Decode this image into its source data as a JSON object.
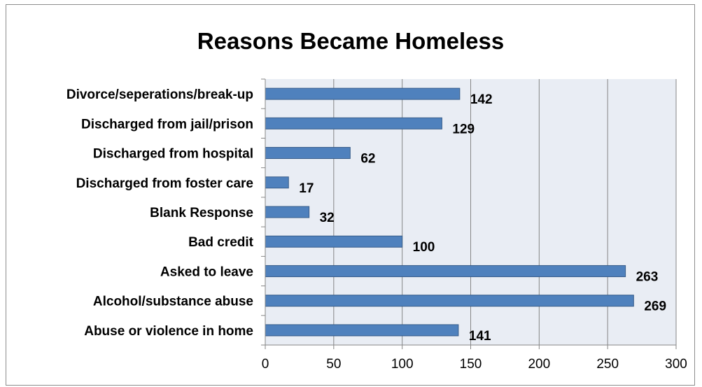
{
  "chart_data": {
    "type": "bar",
    "orientation": "horizontal",
    "title": "Reasons Became Homeless",
    "categories": [
      "Divorce/seperations/break-up",
      "Discharged from jail/prison",
      "Discharged from hospital",
      "Discharged from foster care",
      "Blank Response",
      "Bad credit",
      "Asked to leave",
      "Alcohol/substance abuse",
      "Abuse or violence in home"
    ],
    "values": [
      142,
      129,
      62,
      17,
      32,
      100,
      263,
      269,
      141
    ],
    "xlim": [
      0,
      300
    ],
    "xticks": [
      "0",
      "50",
      "100",
      "150",
      "200",
      "250",
      "300"
    ],
    "grid": "vertical",
    "legend": "none",
    "colors": {
      "bar_fill": "#4f81bd",
      "bar_stroke": "#385d8a",
      "plot_background": "#e9edf4",
      "gridline": "#868686"
    }
  }
}
